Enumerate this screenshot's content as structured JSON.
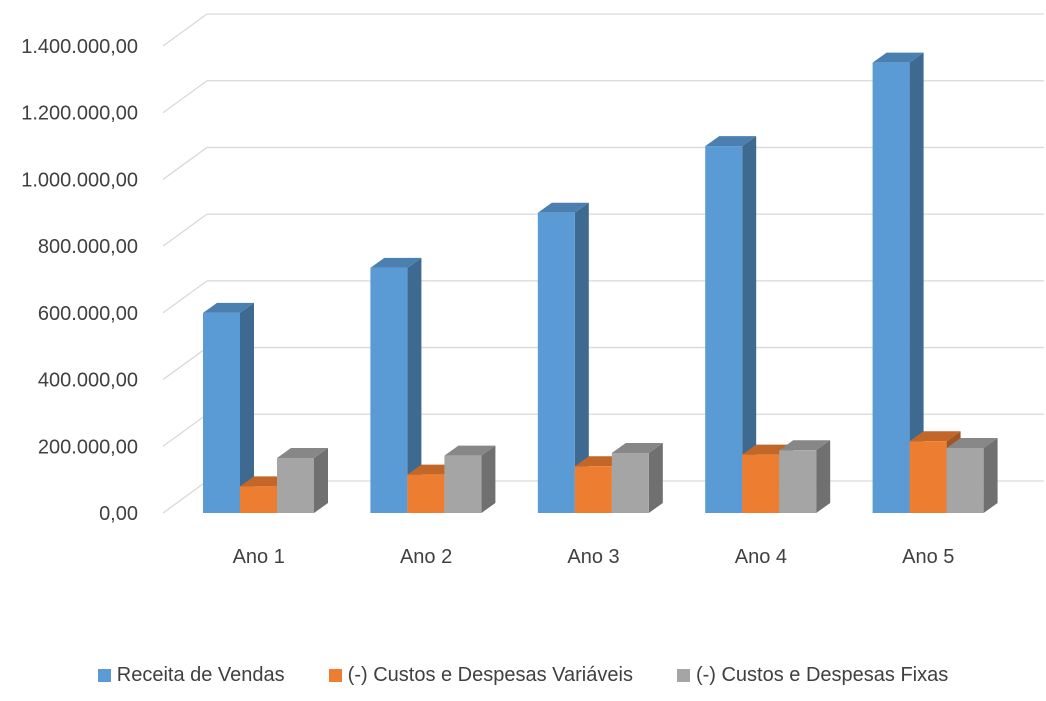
{
  "chart_data": {
    "type": "bar",
    "title": "",
    "xlabel": "",
    "ylabel": "",
    "categories": [
      "Ano 1",
      "Ano 2",
      "Ano 3",
      "Ano 4",
      "Ano 5"
    ],
    "series": [
      {
        "name": "Receita de Vendas",
        "color": "#5B9BD5",
        "values": [
          600000,
          735000,
          900000,
          1100000,
          1350000
        ]
      },
      {
        "name": "(-) Custos e Despesas Variáveis",
        "color": "#ED7D31",
        "values": [
          80000,
          115000,
          140000,
          175000,
          215000
        ]
      },
      {
        "name": "(-) Custos e Despesas Fixas",
        "color": "#A5A5A5",
        "values": [
          165000,
          172000,
          180000,
          188000,
          195000
        ]
      }
    ],
    "ylim": [
      0,
      1400000
    ],
    "yticks": [
      0,
      200000,
      400000,
      600000,
      800000,
      1000000,
      1200000,
      1400000
    ],
    "ytick_labels": [
      "0,00",
      "200.000,00",
      "400.000,00",
      "600.000,00",
      "800.000,00",
      "1.000.000,00",
      "1.200.000,00",
      "1.400.000,00"
    ],
    "grid": true,
    "legend_position": "bottom",
    "style": "3d-clustered-column"
  }
}
